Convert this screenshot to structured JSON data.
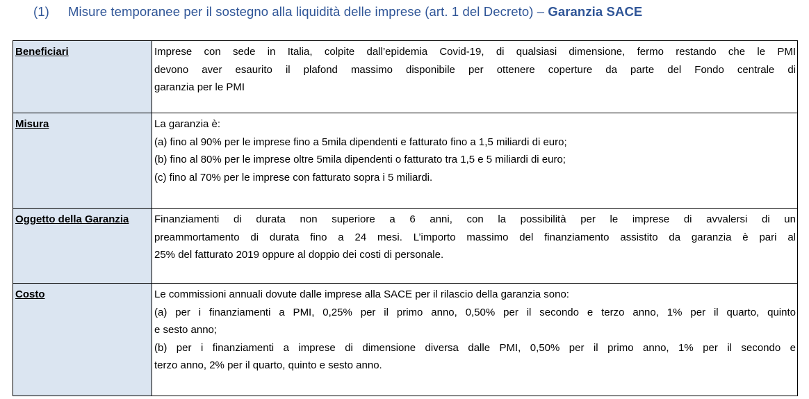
{
  "heading": {
    "number": "(1)",
    "text": "Misure temporanee per il sostegno alla liquidità delle imprese (art. 1 del Decreto) – ",
    "bold": "Garanzia SACE"
  },
  "rows": [
    {
      "label": "Beneficiari",
      "lines": [
        "Imprese con sede in Italia, colpite dall’epidemia Covid-19, di qualsiasi dimensione, fermo restando che le PMI",
        "devono aver esaurito il plafond massimo disponibile per ottenere coperture da parte del Fondo centrale di",
        "garanzia per le PMI"
      ]
    },
    {
      "label": "Misura",
      "lines": [
        "La garanzia è:",
        "(a) fino al 90% per le imprese fino a 5mila dipendenti e fatturato fino a 1,5 miliardi di euro;",
        "(b) fino al 80% per le imprese oltre 5mila dipendenti o fatturato tra 1,5 e 5 miliardi di euro;",
        "(c) fino al 70% per le imprese con fatturato sopra i 5 miliardi."
      ]
    },
    {
      "label": "Oggetto della Garanzia",
      "lines": [
        "Finanziamenti di durata non superiore a 6 anni, con la possibilità per le imprese di avvalersi di un",
        "preammortamento di durata fino a 24 mesi. L’importo massimo del finanziamento assistito da garanzia è pari al",
        "25% del fatturato 2019 oppure al doppio dei costi di personale."
      ]
    },
    {
      "label": "Costo",
      "lines": [
        "Le commissioni annuali dovute dalle imprese alla SACE per il rilascio della garanzia sono:",
        "(a) per i finanziamenti a PMI, 0,25% per il primo anno, 0,50% per il secondo e terzo anno, 1% per il quarto, quinto",
        "e sesto anno;",
        "(b) per i finanziamenti a imprese di dimensione diversa dalle PMI, 0,50% per il primo anno, 1% per il secondo e",
        "terzo anno, 2% per il quarto, quinto e sesto anno."
      ]
    }
  ]
}
